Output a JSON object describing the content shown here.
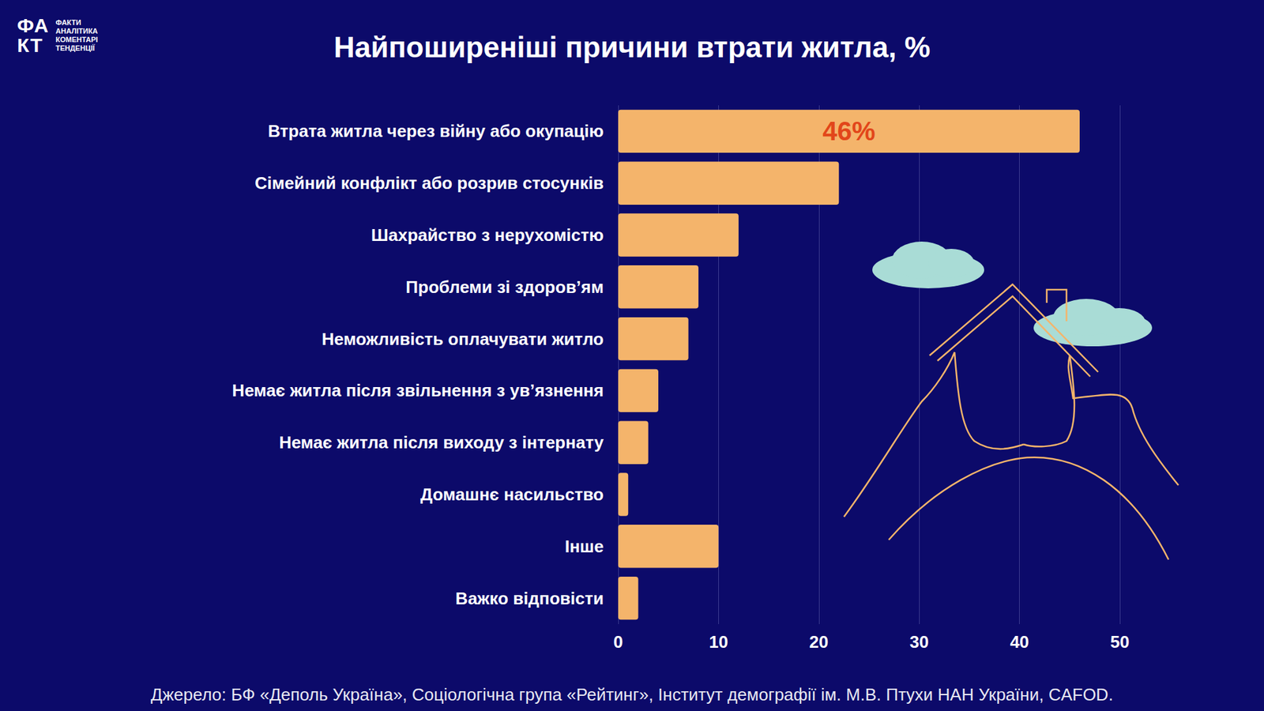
{
  "logo": {
    "mark": "ФАКТ",
    "lines": [
      "ФАКТИ",
      "АНАЛІТИКА",
      "КОМЕНТАРІ",
      "ТЕНДЕНЦІЇ"
    ]
  },
  "chart_data": {
    "type": "bar",
    "orientation": "horizontal",
    "title": "Найпоширеніші причини втрати житла, %",
    "categories": [
      "Втрата житла через війну або окупацію",
      "Сімейний конфлікт або розрив стосунків",
      "Шахрайство з нерухомістю",
      "Проблеми зі здоров’ям",
      "Неможливість оплачувати житло",
      "Немає житла після звільнення з ув’язнення",
      "Немає житла після виходу з інтернату",
      "Домашнє насильство",
      "Інше",
      "Важко відповісти"
    ],
    "values": [
      46,
      22,
      12,
      8,
      7,
      4,
      3,
      1,
      10,
      2
    ],
    "value_labels": [
      "46%",
      null,
      null,
      null,
      null,
      null,
      null,
      null,
      null,
      null
    ],
    "data_labels": true,
    "color": "#f4b46b",
    "xlim": [
      0,
      50
    ],
    "xticks": [
      0,
      10,
      20,
      30,
      40,
      50
    ],
    "grid": true
  },
  "source": "Джерело: БФ «Деполь Україна», Соціологічна група «Рейтинг», Інститут демографії ім. М.В. Птухи НАН України, CAFOD."
}
